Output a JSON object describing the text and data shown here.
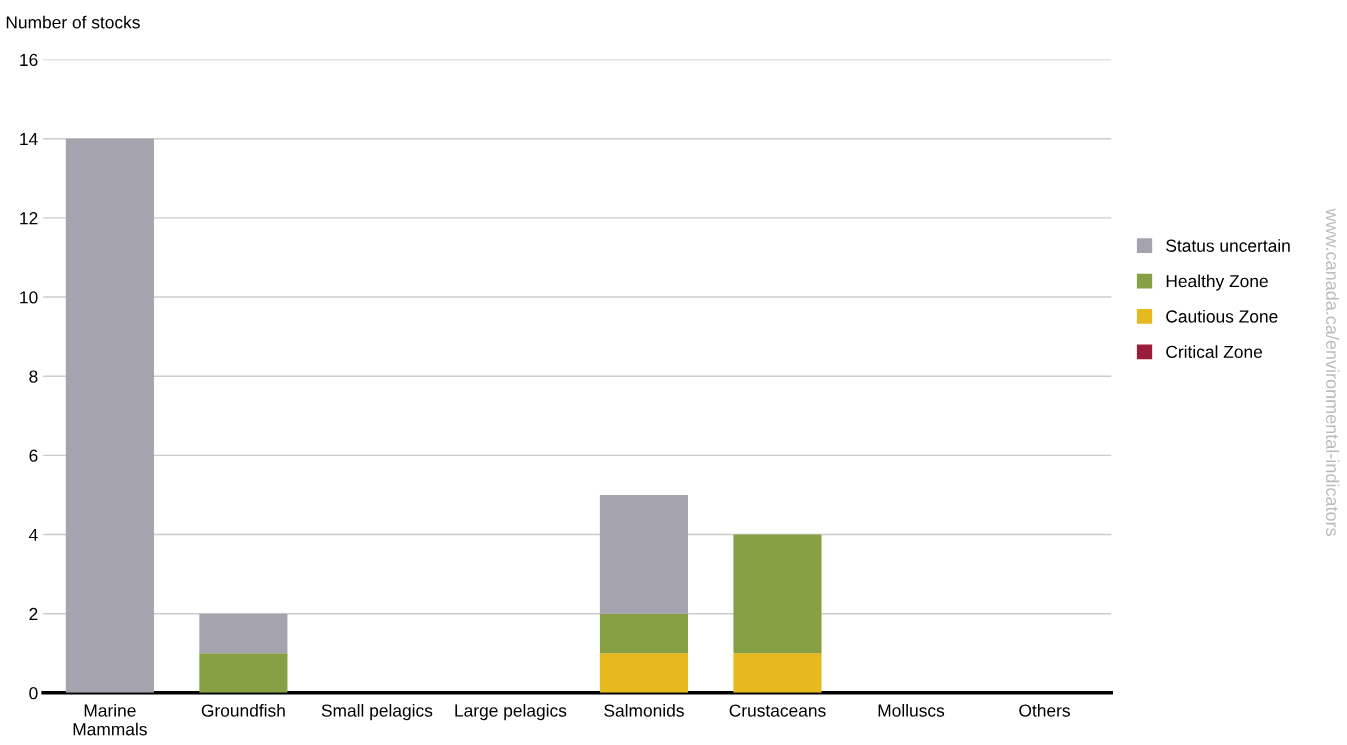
{
  "chart_data": {
    "type": "bar",
    "stacked": true,
    "ylabel": "Number of stocks",
    "categories": [
      "Marine\nMammals",
      "Groundfish",
      "Small pelagics",
      "Large pelagics",
      "Salmonids",
      "Crustaceans",
      "Molluscs",
      "Others"
    ],
    "series": [
      {
        "name": "Critical Zone",
        "color": "#9b1b3a",
        "values": [
          0,
          0,
          0,
          0,
          0,
          0,
          0,
          0
        ]
      },
      {
        "name": "Cautious Zone",
        "color": "#e6b91e",
        "values": [
          0,
          0,
          0,
          0,
          1,
          1,
          0,
          0
        ]
      },
      {
        "name": "Healthy Zone",
        "color": "#86a043",
        "values": [
          0,
          1,
          0,
          0,
          1,
          3,
          0,
          0
        ]
      },
      {
        "name": "Status uncertain",
        "color": "#a5a3ae",
        "values": [
          14,
          1,
          0,
          0,
          3,
          0,
          0,
          0
        ]
      }
    ],
    "ylim": [
      0,
      16
    ],
    "yticks": [
      0,
      2,
      4,
      6,
      8,
      10,
      12,
      14,
      16
    ],
    "grid": "y",
    "legend": "right",
    "annotations": [
      "www.canada.ca/environmental-indicators"
    ]
  }
}
